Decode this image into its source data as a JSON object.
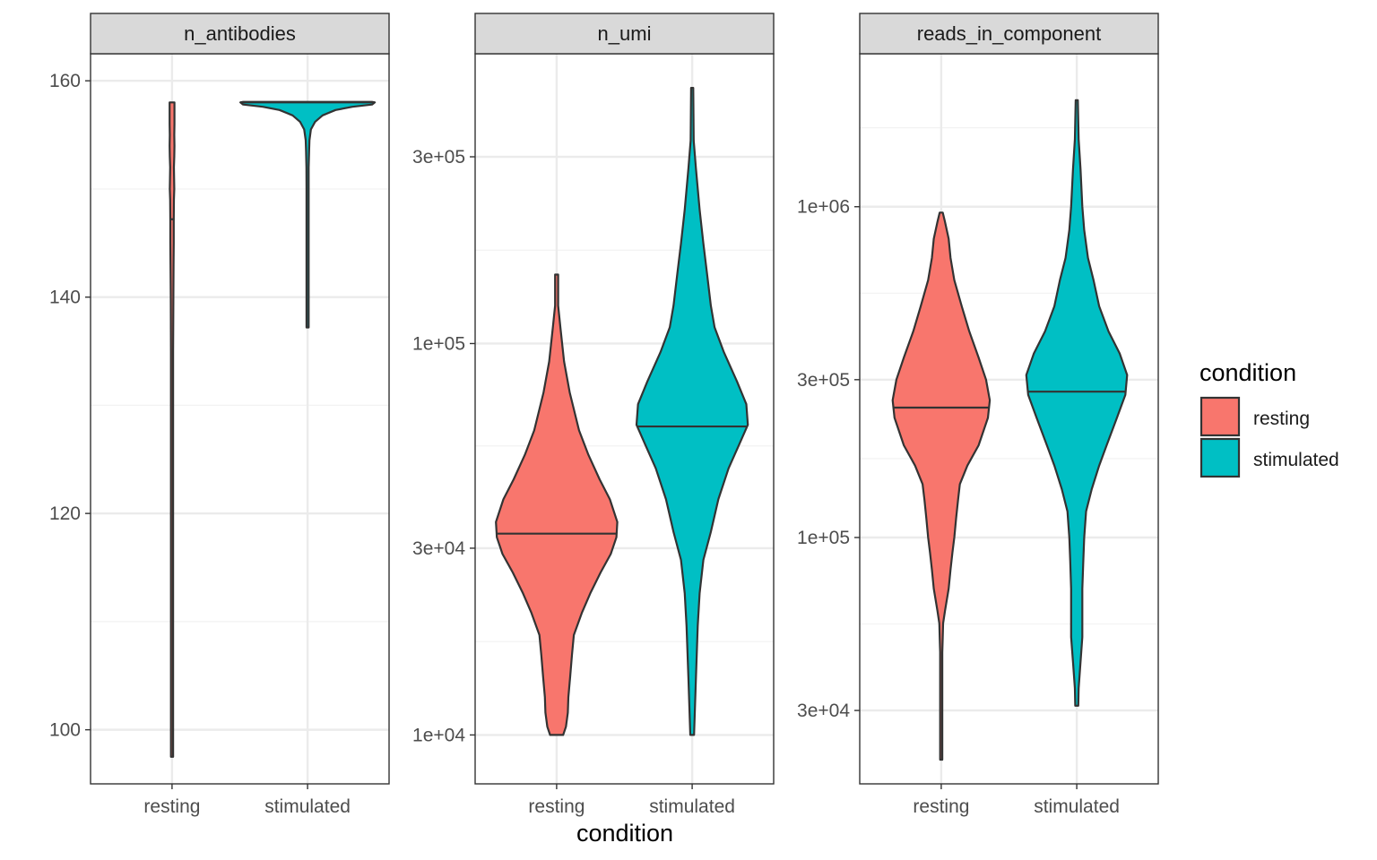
{
  "chart_data": {
    "type": "violin",
    "xlabel": "condition",
    "categories": [
      "resting",
      "stimulated"
    ],
    "legend": {
      "title": "condition",
      "placement": "right",
      "entries": [
        {
          "label": "resting",
          "color": "#F8766D"
        },
        {
          "label": "stimulated",
          "color": "#00BFC4"
        }
      ]
    },
    "grid": true,
    "panels": [
      {
        "title": "n_antibodies",
        "scale": "linear",
        "ylim": [
          95,
          162.5
        ],
        "ticks": [
          100,
          120,
          140,
          160
        ],
        "tick_labels": [
          "100",
          "120",
          "140",
          "160"
        ],
        "minor_ticks": [
          110,
          130,
          150
        ],
        "series": [
          {
            "name": "resting",
            "median": 147.2,
            "profile": [
              [
                97.5,
                0.003
              ],
              [
                110,
                0.003
              ],
              [
                125,
                0.003
              ],
              [
                135,
                0.005
              ],
              [
                140,
                0.007
              ],
              [
                143,
                0.008
              ],
              [
                145,
                0.009
              ],
              [
                147,
                0.009
              ],
              [
                149,
                0.01
              ],
              [
                150,
                0.012
              ],
              [
                151,
                0.011
              ],
              [
                152,
                0.01
              ],
              [
                153,
                0.012
              ],
              [
                154,
                0.013
              ],
              [
                155,
                0.012
              ],
              [
                156,
                0.013
              ],
              [
                157,
                0.013
              ],
              [
                158,
                0.013
              ]
            ]
          },
          {
            "name": "stimulated",
            "median": 158,
            "profile": [
              [
                137.2,
                0.003
              ],
              [
                145,
                0.003
              ],
              [
                150,
                0.004
              ],
              [
                152,
                0.006
              ],
              [
                153.5,
                0.008
              ],
              [
                154.5,
                0.01
              ],
              [
                155.5,
                0.018
              ],
              [
                156.2,
                0.04
              ],
              [
                156.8,
                0.08
              ],
              [
                157.3,
                0.15
              ],
              [
                157.6,
                0.24
              ],
              [
                157.8,
                0.345
              ],
              [
                158.0,
                0.36
              ],
              [
                158.05,
                0.345
              ]
            ]
          }
        ]
      },
      {
        "title": "n_umi",
        "scale": "log10",
        "ylim": [
          7500,
          550000
        ],
        "ticks": [
          10000,
          30000,
          100000,
          300000
        ],
        "tick_labels": [
          "1e+04",
          "3e+04",
          "1e+05",
          "3e+05"
        ],
        "minor_ticks": [
          17320,
          54770,
          173200
        ],
        "series": [
          {
            "name": "resting",
            "median": 32680,
            "profile": [
              [
                10000,
                0.035
              ],
              [
                10500,
                0.05
              ],
              [
                11400,
                0.06
              ],
              [
                12500,
                0.063
              ],
              [
                14000,
                0.072
              ],
              [
                16000,
                0.082
              ],
              [
                18000,
                0.092
              ],
              [
                20500,
                0.135
              ],
              [
                23000,
                0.18
              ],
              [
                26000,
                0.235
              ],
              [
                29000,
                0.29
              ],
              [
                32000,
                0.32
              ],
              [
                35000,
                0.325
              ],
              [
                40000,
                0.285
              ],
              [
                45000,
                0.23
              ],
              [
                52000,
                0.17
              ],
              [
                60000,
                0.12
              ],
              [
                75000,
                0.07
              ],
              [
                90000,
                0.04
              ],
              [
                110000,
                0.02
              ],
              [
                125000,
                0.008
              ],
              [
                150000,
                0.008
              ]
            ]
          },
          {
            "name": "stimulated",
            "median": 61400,
            "profile": [
              [
                10000,
                0.01
              ],
              [
                14000,
                0.02
              ],
              [
                19000,
                0.03
              ],
              [
                23000,
                0.04
              ],
              [
                28000,
                0.06
              ],
              [
                33000,
                0.1
              ],
              [
                40000,
                0.14
              ],
              [
                48000,
                0.195
              ],
              [
                55000,
                0.25
              ],
              [
                62000,
                0.298
              ],
              [
                70000,
                0.29
              ],
              [
                80000,
                0.24
              ],
              [
                95000,
                0.17
              ],
              [
                110000,
                0.12
              ],
              [
                125000,
                0.1
              ],
              [
                150000,
                0.08
              ],
              [
                180000,
                0.06
              ],
              [
                220000,
                0.04
              ],
              [
                280000,
                0.02
              ],
              [
                330000,
                0.008
              ],
              [
                450000,
                0.005
              ]
            ]
          }
        ]
      },
      {
        "title": "reads_in_component",
        "scale": "log10",
        "ylim": [
          18000,
          2900000
        ],
        "ticks": [
          30000,
          100000,
          300000,
          1000000
        ],
        "tick_labels": [
          "3e+04",
          "1e+05",
          "3e+05",
          "1e+06"
        ],
        "minor_ticks": [
          54770,
          173200,
          547700,
          1732000
        ],
        "series": [
          {
            "name": "resting",
            "median": 247000,
            "profile": [
              [
                21300,
                0.004
              ],
              [
                30000,
                0.004
              ],
              [
                45000,
                0.004
              ],
              [
                50000,
                0.008
              ],
              [
                55000,
                0.01
              ],
              [
                60000,
                0.02
              ],
              [
                70000,
                0.04
              ],
              [
                80000,
                0.05
              ],
              [
                90000,
                0.06
              ],
              [
                100000,
                0.07
              ],
              [
                115000,
                0.08
              ],
              [
                130000,
                0.09
              ],
              [
                145000,
                0.1
              ],
              [
                165000,
                0.14
              ],
              [
                190000,
                0.2
              ],
              [
                230000,
                0.25
              ],
              [
                260000,
                0.26
              ],
              [
                300000,
                0.24
              ],
              [
                350000,
                0.2
              ],
              [
                420000,
                0.15
              ],
              [
                500000,
                0.11
              ],
              [
                600000,
                0.07
              ],
              [
                700000,
                0.05
              ],
              [
                800000,
                0.04
              ],
              [
                900000,
                0.02
              ],
              [
                960000,
                0.008
              ]
            ]
          },
          {
            "name": "stimulated",
            "median": 276000,
            "profile": [
              [
                31000,
                0.008
              ],
              [
                35000,
                0.01
              ],
              [
                42000,
                0.02
              ],
              [
                50000,
                0.03
              ],
              [
                60000,
                0.03
              ],
              [
                70000,
                0.03
              ],
              [
                85000,
                0.035
              ],
              [
                100000,
                0.04
              ],
              [
                120000,
                0.05
              ],
              [
                140000,
                0.08
              ],
              [
                165000,
                0.12
              ],
              [
                190000,
                0.16
              ],
              [
                230000,
                0.215
              ],
              [
                270000,
                0.26
              ],
              [
                310000,
                0.27
              ],
              [
                360000,
                0.23
              ],
              [
                420000,
                0.17
              ],
              [
                500000,
                0.12
              ],
              [
                600000,
                0.09
              ],
              [
                700000,
                0.06
              ],
              [
                850000,
                0.04
              ],
              [
                1000000,
                0.03
              ],
              [
                1300000,
                0.02
              ],
              [
                1600000,
                0.01
              ],
              [
                2100000,
                0.005
              ]
            ]
          }
        ]
      }
    ]
  }
}
